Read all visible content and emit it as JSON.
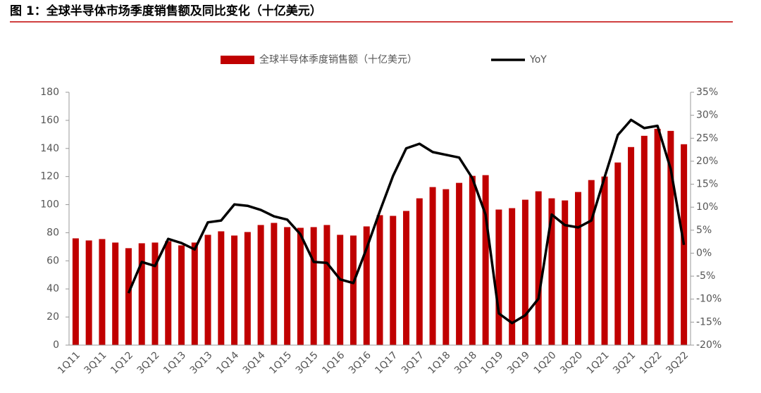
{
  "chart_data": {
    "type": "bar_line",
    "title": "图 1：全球半导体市场季度销售额及同比变化（十亿美元）",
    "categories": [
      "1Q11",
      null,
      "3Q11",
      null,
      "1Q12",
      null,
      "3Q12",
      null,
      "1Q13",
      null,
      "3Q13",
      null,
      "1Q14",
      null,
      "3Q14",
      null,
      "1Q15",
      null,
      "3Q15",
      null,
      "1Q16",
      null,
      "3Q16",
      null,
      "1Q17",
      null,
      "3Q17",
      null,
      "1Q18",
      null,
      "3Q18",
      null,
      "1Q19",
      null,
      "3Q19",
      null,
      "1Q20",
      null,
      "3Q20",
      null,
      "1Q21",
      null,
      "3Q21",
      null,
      "1Q22",
      null,
      "3Q22"
    ],
    "series": [
      {
        "name": "全球半导体季度销售额（十亿美元）",
        "type": "bar",
        "color": "#c00000",
        "values": [
          76,
          74.5,
          75.5,
          73,
          69,
          72.5,
          73,
          74,
          71,
          73,
          78.5,
          81,
          78,
          80.5,
          85.5,
          87,
          84,
          83.5,
          84,
          85.5,
          78.5,
          78,
          84.5,
          92.5,
          92,
          95.5,
          104.5,
          112.5,
          111,
          115.5,
          120.5,
          121,
          96.5,
          97.5,
          103.5,
          109.5,
          104.5,
          103,
          109,
          117.5,
          120,
          130,
          141,
          149,
          154,
          152.5,
          143
        ]
      },
      {
        "name": "YoY",
        "type": "line",
        "axis": "y2",
        "color": "#000000",
        "values": [
          null,
          null,
          null,
          null,
          -8.7,
          -1.9,
          -2.8,
          3.1,
          2.2,
          0.8,
          6.7,
          7.1,
          10.6,
          10.3,
          9.4,
          8.0,
          7.3,
          4.1,
          -1.9,
          -2.1,
          -5.7,
          -6.5,
          1.0,
          9.1,
          16.8,
          22.8,
          23.8,
          22.0,
          21.4,
          20.8,
          16.3,
          8.4,
          -13.1,
          -15.2,
          -13.5,
          -9.9,
          8.4,
          6.1,
          5.6,
          7.1,
          16.5,
          25.7,
          29.0,
          27.2,
          27.7,
          18.3,
          1.8
        ]
      }
    ],
    "ylim": [
      0,
      180
    ],
    "yticks": [
      0,
      20,
      40,
      60,
      80,
      100,
      120,
      140,
      160,
      180
    ],
    "y2lim": [
      -20,
      35
    ],
    "y2ticks": [
      {
        "value": -20,
        "label": "-20%"
      },
      {
        "value": -15,
        "label": "-15%"
      },
      {
        "value": -10,
        "label": "-10%"
      },
      {
        "value": -5,
        "label": "-5%"
      },
      {
        "value": 0,
        "label": "0%"
      },
      {
        "value": 5,
        "label": "5%"
      },
      {
        "value": 10,
        "label": "10%"
      },
      {
        "value": 15,
        "label": "15%"
      },
      {
        "value": 20,
        "label": "20%"
      },
      {
        "value": 25,
        "label": "25%"
      },
      {
        "value": 30,
        "label": "30%"
      },
      {
        "value": 35,
        "label": "35%"
      }
    ],
    "legend": "top",
    "grid": false
  }
}
